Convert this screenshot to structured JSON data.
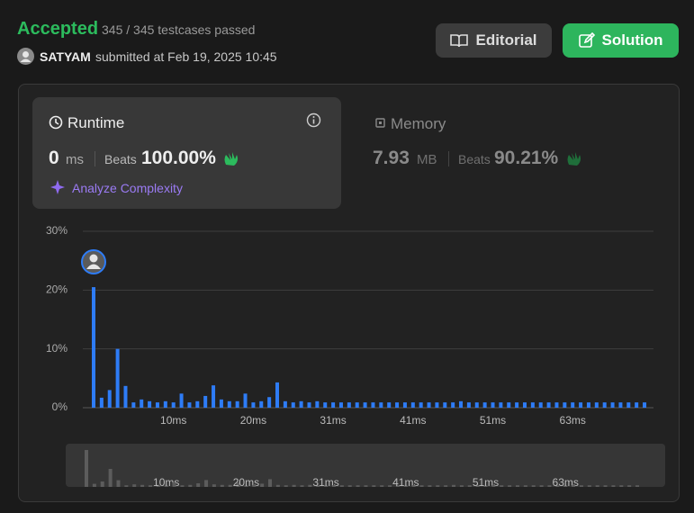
{
  "header": {
    "status": "Accepted",
    "testcases": "345 / 345 testcases passed",
    "user": "SATYAM",
    "submitted": "submitted at Feb 19, 2025 10:45"
  },
  "buttons": {
    "editorial": "Editorial",
    "solution": "Solution"
  },
  "runtime": {
    "title": "Runtime",
    "value": "0",
    "unit": "ms",
    "beats_label": "Beats",
    "beats": "100.00%",
    "analyze": "Analyze Complexity"
  },
  "memory": {
    "title": "Memory",
    "value": "7.93",
    "unit": "MB",
    "beats_label": "Beats",
    "beats": "90.21%"
  },
  "chart_data": {
    "type": "bar",
    "color": "#2e7cf6",
    "overview_color": "#5c5c5c",
    "categories": [
      null,
      null,
      null,
      null,
      null,
      null,
      null,
      null,
      null,
      null,
      "10ms",
      null,
      null,
      null,
      null,
      null,
      null,
      null,
      null,
      null,
      "20ms",
      null,
      null,
      null,
      null,
      null,
      null,
      null,
      null,
      null,
      "31ms",
      null,
      null,
      null,
      null,
      null,
      null,
      null,
      null,
      null,
      "41ms",
      null,
      null,
      null,
      null,
      null,
      null,
      null,
      null,
      null,
      "51ms",
      null,
      null,
      null,
      null,
      null,
      null,
      null,
      null,
      null,
      "63ms",
      null,
      null,
      null,
      null,
      null,
      null,
      null,
      null,
      null
    ],
    "values": [
      20.5,
      1.7,
      3,
      10,
      3.7,
      0.9,
      1.4,
      1.1,
      0.9,
      1.1,
      0.9,
      2.4,
      0.9,
      1.1,
      2,
      3.8,
      1.4,
      1.1,
      1.1,
      2.4,
      0.9,
      1.1,
      1.8,
      4.3,
      1.1,
      0.9,
      1.1,
      0.9,
      1.1,
      0.9,
      0.9,
      0.9,
      0.9,
      0.9,
      0.9,
      0.9,
      0.9,
      0.9,
      0.9,
      0.9,
      0.9,
      0.9,
      0.9,
      0.9,
      0.9,
      0.9,
      1.1,
      0.9,
      0.9,
      0.9,
      0.9,
      0.9,
      0.9,
      0.9,
      0.9,
      0.9,
      0.9,
      0.9,
      0.9,
      0.9,
      0.9,
      0.9,
      0.9,
      0.9,
      0.9,
      0.9,
      0.9,
      0.9,
      0.9,
      0.9
    ],
    "ylim": [
      0,
      30
    ],
    "yticks": [
      {
        "value": 0,
        "label": "0%"
      },
      {
        "value": 10,
        "label": "10%"
      },
      {
        "value": 20,
        "label": "20%"
      },
      {
        "value": 30,
        "label": "30%"
      }
    ],
    "grid": true
  }
}
